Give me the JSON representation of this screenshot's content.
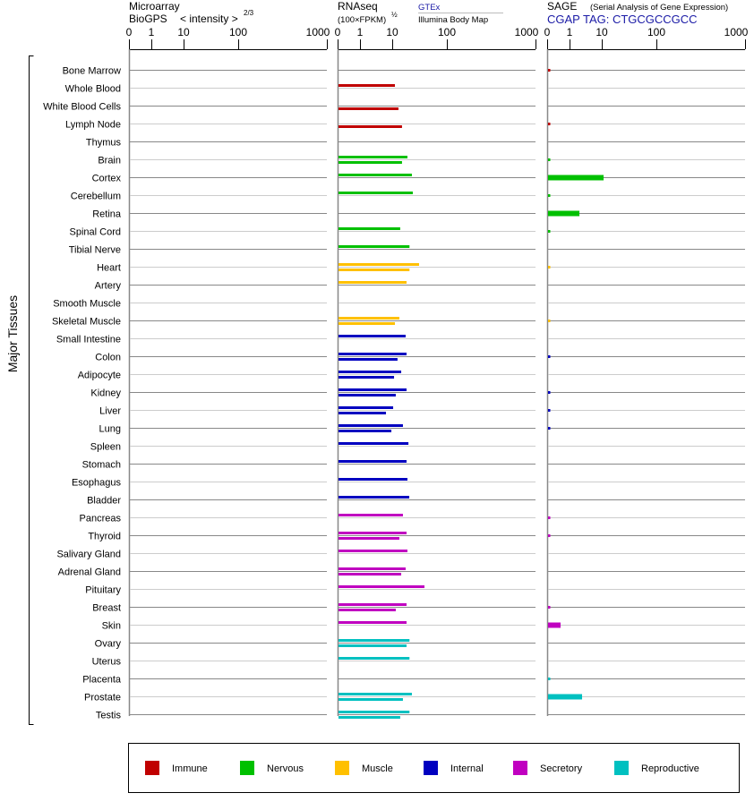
{
  "chart_data": {
    "type": "bar",
    "y_axis_label": "Major Tissues",
    "scale_ticks": [
      "0",
      "1",
      "10",
      "100",
      "1000"
    ],
    "tick_values": [
      0,
      1,
      10,
      100,
      1000
    ],
    "panels": {
      "microarray": {
        "title": "Microarray",
        "source": "BioGPS",
        "unit": "< intensity >",
        "unit_exp": "2/3"
      },
      "rnaseq": {
        "title": "RNAseq",
        "unit": "(100×FPKM)",
        "unit_exp": "½",
        "series_gtex": "GTEx",
        "series_illumina": "Illumina Body Map"
      },
      "sage": {
        "title": "SAGE",
        "subtitle": "(Serial Analysis of Gene Expression)",
        "tag": "CGAP TAG: CTGCGCCGCC"
      }
    },
    "groups": {
      "Immune": "#c00000",
      "Nervous": "#00c000",
      "Muscle": "#ffc000",
      "Internal": "#0000c0",
      "Secretory": "#c000c0",
      "Reproductive": "#00c0c0"
    },
    "tissues": [
      {
        "name": "Bone Marrow",
        "group": "Immune",
        "gtex": null,
        "illumina": null,
        "sage": 0.1
      },
      {
        "name": "Whole Blood",
        "group": "Immune",
        "gtex": 11.2,
        "illumina": null,
        "sage": null
      },
      {
        "name": "White Blood Cells",
        "group": "Immune",
        "gtex": null,
        "illumina": 13.0,
        "sage": null
      },
      {
        "name": "Lymph Node",
        "group": "Immune",
        "gtex": null,
        "illumina": 15.1,
        "sage": 0.1
      },
      {
        "name": "Thymus",
        "group": "Immune",
        "gtex": null,
        "illumina": null,
        "sage": null
      },
      {
        "name": "Brain",
        "group": "Nervous",
        "gtex": 19.0,
        "illumina": 15.1,
        "sage": 0.1
      },
      {
        "name": "Cortex",
        "group": "Nervous",
        "gtex": 22.9,
        "illumina": null,
        "sage": 10.4
      },
      {
        "name": "Cerebellum",
        "group": "Nervous",
        "gtex": 23.8,
        "illumina": null,
        "sage": 0.1
      },
      {
        "name": "Retina",
        "group": "Nervous",
        "gtex": null,
        "illumina": null,
        "sage": 1.9
      },
      {
        "name": "Spinal Cord",
        "group": "Nervous",
        "gtex": 14.0,
        "illumina": null,
        "sage": 0.1
      },
      {
        "name": "Tibial Nerve",
        "group": "Nervous",
        "gtex": 20.7,
        "illumina": null,
        "sage": null
      },
      {
        "name": "Heart",
        "group": "Muscle",
        "gtex": 31.0,
        "illumina": 20.7,
        "sage": 0.1
      },
      {
        "name": "Artery",
        "group": "Muscle",
        "gtex": 18.3,
        "illumina": null,
        "sage": null
      },
      {
        "name": "Smooth Muscle",
        "group": "Muscle",
        "gtex": null,
        "illumina": null,
        "sage": null
      },
      {
        "name": "Skeletal Muscle",
        "group": "Muscle",
        "gtex": 13.5,
        "illumina": 11.2,
        "sage": 0.1
      },
      {
        "name": "Small Intestine",
        "group": "Internal",
        "gtex": 17.6,
        "illumina": null,
        "sage": null
      },
      {
        "name": "Colon",
        "group": "Internal",
        "gtex": 18.3,
        "illumina": 12.5,
        "sage": 0.1
      },
      {
        "name": "Adipocyte",
        "group": "Internal",
        "gtex": 14.6,
        "illumina": 10.8,
        "sage": null
      },
      {
        "name": "Kidney",
        "group": "Internal",
        "gtex": 18.3,
        "illumina": 11.6,
        "sage": 0.1
      },
      {
        "name": "Liver",
        "group": "Internal",
        "gtex": 10.4,
        "illumina": 6.4,
        "sage": 0.1
      },
      {
        "name": "Lung",
        "group": "Internal",
        "gtex": 15.7,
        "illumina": 9.4,
        "sage": 0.1
      },
      {
        "name": "Spleen",
        "group": "Internal",
        "gtex": 19.8,
        "illumina": null,
        "sage": null
      },
      {
        "name": "Stomach",
        "group": "Internal",
        "gtex": 18.3,
        "illumina": null,
        "sage": null
      },
      {
        "name": "Esophagus",
        "group": "Internal",
        "gtex": 19.0,
        "illumina": null,
        "sage": null
      },
      {
        "name": "Bladder",
        "group": "Internal",
        "gtex": 20.5,
        "illumina": null,
        "sage": null
      },
      {
        "name": "Pancreas",
        "group": "Secretory",
        "gtex": 15.7,
        "illumina": null,
        "sage": 0.1
      },
      {
        "name": "Thyroid",
        "group": "Secretory",
        "gtex": 18.3,
        "illumina": 13.5,
        "sage": 0.1
      },
      {
        "name": "Salivary Gland",
        "group": "Secretory",
        "gtex": 19.0,
        "illumina": null,
        "sage": null
      },
      {
        "name": "Adrenal Gland",
        "group": "Secretory",
        "gtex": 17.6,
        "illumina": 14.6,
        "sage": null
      },
      {
        "name": "Pituitary",
        "group": "Secretory",
        "gtex": 38.9,
        "illumina": null,
        "sage": null
      },
      {
        "name": "Breast",
        "group": "Secretory",
        "gtex": 18.3,
        "illumina": 11.6,
        "sage": 0.1
      },
      {
        "name": "Skin",
        "group": "Secretory",
        "gtex": 18.3,
        "illumina": null,
        "sage": 0.56
      },
      {
        "name": "Ovary",
        "group": "Reproductive",
        "gtex": 20.7,
        "illumina": 18.3,
        "sage": null
      },
      {
        "name": "Uterus",
        "group": "Reproductive",
        "gtex": 20.7,
        "illumina": null,
        "sage": null
      },
      {
        "name": "Placenta",
        "group": "Reproductive",
        "gtex": null,
        "illumina": null,
        "sage": 0.1
      },
      {
        "name": "Prostate",
        "group": "Reproductive",
        "gtex": 22.9,
        "illumina": 15.7,
        "sage": 2.3
      },
      {
        "name": "Testis",
        "group": "Reproductive",
        "gtex": 20.7,
        "illumina": 14.0,
        "sage": null
      }
    ],
    "legend": [
      "Immune",
      "Nervous",
      "Muscle",
      "Internal",
      "Secretory",
      "Reproductive"
    ],
    "legend_placement": "bottom"
  }
}
